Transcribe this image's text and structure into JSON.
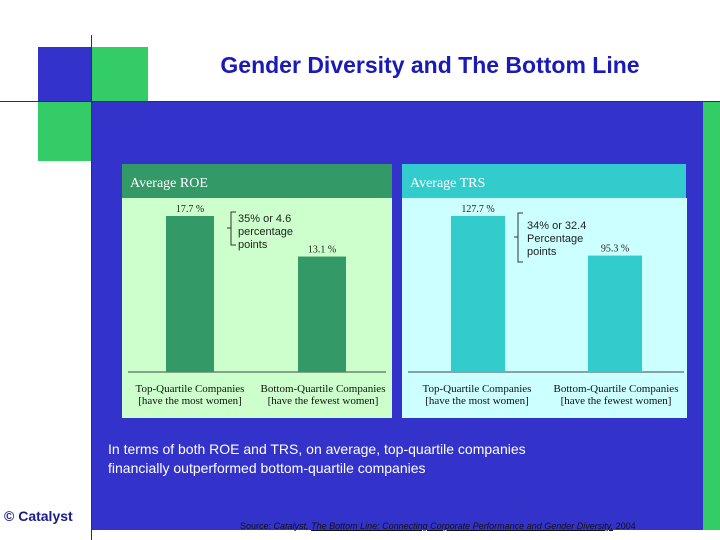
{
  "title": "Gender Diversity and The Bottom Line",
  "charts": {
    "roe": {
      "header": "Average ROE",
      "note_lines": [
        "35% or 4.6",
        "percentage",
        "points"
      ],
      "categories": [
        {
          "line1": "Top-Quartile Companies",
          "line2": "[have the most women]"
        },
        {
          "line1": "Bottom-Quartile Companies",
          "line2": "[have the fewest women]"
        }
      ],
      "value_labels": [
        "17.7 %",
        "13.1 %"
      ]
    },
    "trs": {
      "header": "Average TRS",
      "note_lines": [
        "34% or 32.4",
        "Percentage",
        "points"
      ],
      "categories": [
        {
          "line1": "Top-Quartile Companies",
          "line2": "[have the most women]"
        },
        {
          "line1": "Bottom-Quartile Companies",
          "line2": "[have the fewest women]"
        }
      ],
      "value_labels": [
        "127.7 %",
        "95.3 %"
      ]
    }
  },
  "chart_data": [
    {
      "type": "bar",
      "title": "Average ROE",
      "categories": [
        "Top-Quartile Companies [have the most women]",
        "Bottom-Quartile Companies [have the fewest women]"
      ],
      "values": [
        17.7,
        13.1
      ],
      "unit": "%",
      "annotation": "35% or 4.6 percentage points",
      "color": "#339966"
    },
    {
      "type": "bar",
      "title": "Average TRS",
      "categories": [
        "Top-Quartile Companies [have the most women]",
        "Bottom-Quartile Companies [have the fewest women]"
      ],
      "values": [
        127.7,
        95.3
      ],
      "unit": "%",
      "annotation": "34% or 32.4 Percentage points",
      "color": "#33cccc"
    }
  ],
  "summary_lines": [
    "In terms of both ROE and TRS, on average, top-quartile companies",
    "financially outperformed bottom-quartile companies"
  ],
  "logo": "© Catalyst",
  "source": {
    "prefix": "Source:",
    "org": "Catalyst,",
    "link": "The Bottom Line: Connecting Corporate Performance and Gender Diversity,",
    "year": "2004"
  },
  "colors": {
    "panel": "#3333cc",
    "accent_green": "#33cc66",
    "roe_bar": "#339966",
    "trs_bar": "#33cccc"
  }
}
